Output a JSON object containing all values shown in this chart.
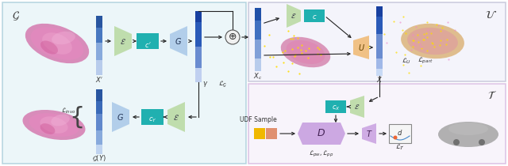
{
  "bg_color": "#ffffff",
  "left_panel_bg": "#ddf0f5",
  "right_top_bg": "#e8e8f8",
  "right_bot_bg": "#f0e8f8",
  "left_border": "#88bbcc",
  "right_top_border": "#9999bb",
  "right_bot_border": "#bb88cc",
  "green_trap": "#b8d9a0",
  "blue_trap": "#a8c8e8",
  "orange_trap": "#f0b870",
  "purple_trap": "#c8a0e0",
  "teal_box": "#20b0b0",
  "purple_hex": "#c8a0e0",
  "title_G": "$\\mathcal{G}$",
  "title_U": "$\\mathcal{U}$",
  "title_T": "$\\mathcal{T}$",
  "label_E": "$\\mathcal{E}$",
  "label_G_block": "$G$",
  "label_c_prime": "$c'$",
  "label_c_Y": "$c_Y$",
  "label_c": "$c$",
  "label_c_X": "$c_X$",
  "label_U": "$U$",
  "label_D": "$D$",
  "label_T": "$T$",
  "label_Xprime": "$X'$",
  "label_GY": "$\\mathcal{G}(Y)$",
  "label_Xc": "$X_c$",
  "label_X": "$X$",
  "label_gamma": "$\\gamma$",
  "label_Linvo": "$\\mathcal{L}_{invo}$",
  "label_LG": "$\\mathcal{L}_{\\mathcal{G}}$",
  "label_LU": "$\\mathcal{L}_U$",
  "label_Lpart": "$\\mathcal{L}_{part}$",
  "label_Lpw_pp": "$\\mathcal{L}_{pw}, \\mathcal{L}_{pp}$",
  "label_LT": "$\\mathcal{L}_{\\mathcal{T}}$",
  "label_UDF": "UDF Sample",
  "label_d": "$d$"
}
